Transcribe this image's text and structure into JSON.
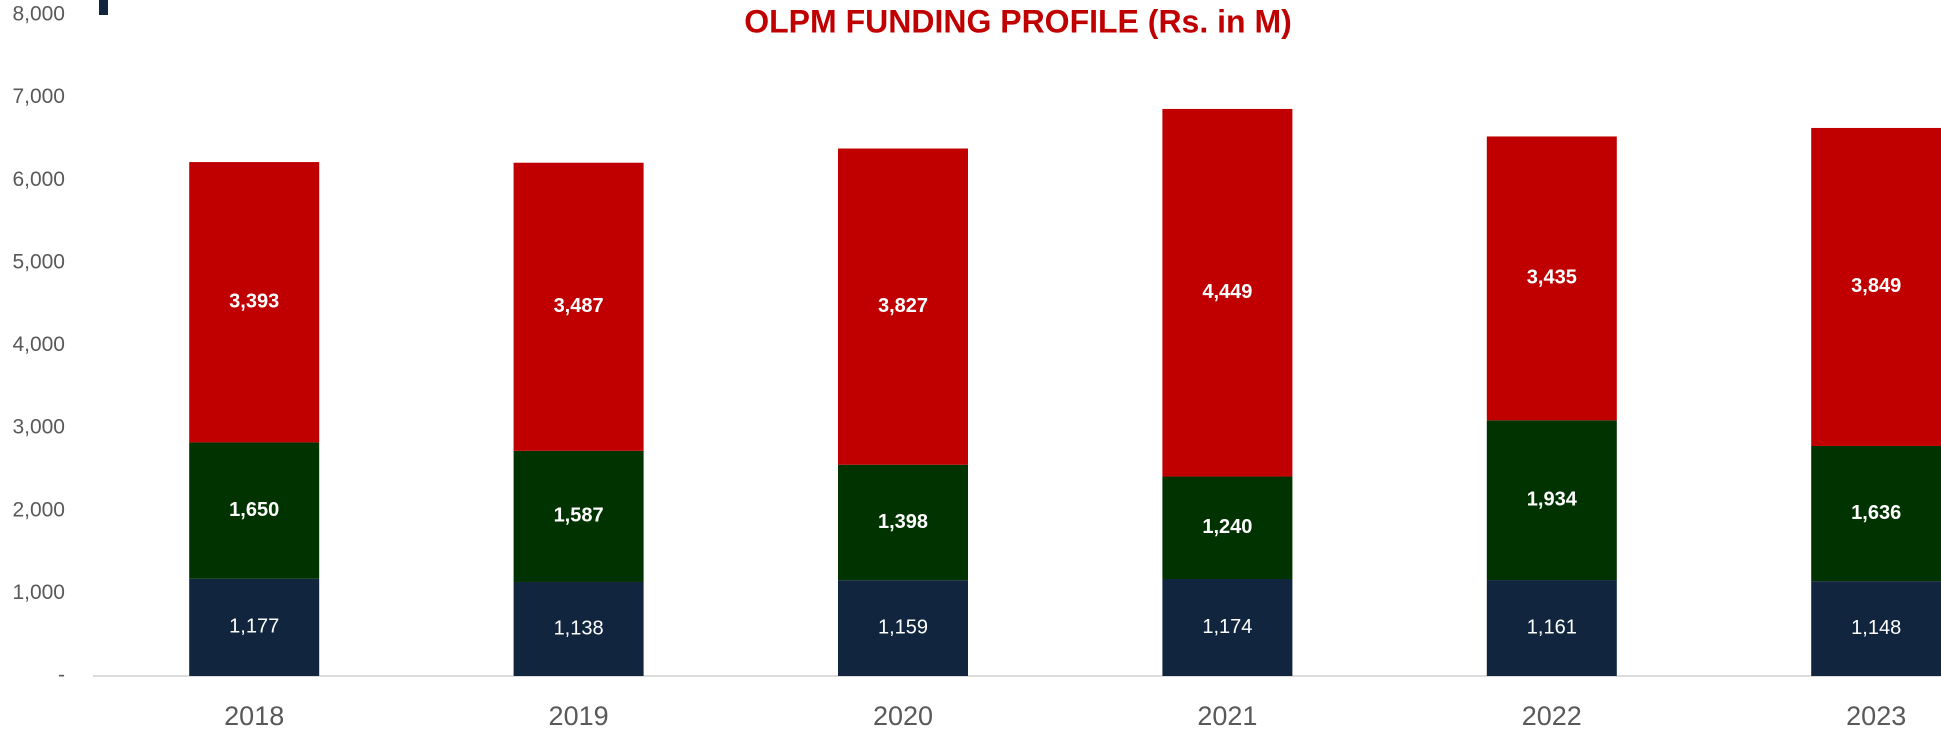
{
  "chart_data": {
    "type": "stacked_bar",
    "title": "OLPM FUNDING PROFILE (Rs. in M)",
    "categories": [
      "2018",
      "2019",
      "2020",
      "2021",
      "2022",
      "2023"
    ],
    "series": [
      {
        "color": "#12253f",
        "values": [
          1177,
          1138,
          1159,
          1174,
          1161,
          1148
        ],
        "value_labels": [
          "1,177",
          "1,138",
          "1,159",
          "1,174",
          "1,161",
          "1,148"
        ]
      },
      {
        "color": "#003300",
        "values": [
          1650,
          1587,
          1398,
          1240,
          1934,
          1636
        ],
        "value_labels": [
          "1,650",
          "1,587",
          "1,398",
          "1,240",
          "1,934",
          "1,636"
        ]
      },
      {
        "color": "#c00000",
        "values": [
          3393,
          3487,
          3827,
          4449,
          3435,
          3849
        ],
        "value_labels": [
          "3,393",
          "3,487",
          "3,827",
          "4,449",
          "3,435",
          "3,849"
        ]
      }
    ],
    "ylim": [
      0,
      8000
    ],
    "yticks": [
      {
        "value": 0,
        "label": "-"
      },
      {
        "value": 1000,
        "label": "1,000"
      },
      {
        "value": 2000,
        "label": "2,000"
      },
      {
        "value": 3000,
        "label": "3,000"
      },
      {
        "value": 4000,
        "label": "4,000"
      },
      {
        "value": 5000,
        "label": "5,000"
      },
      {
        "value": 6000,
        "label": "6,000"
      },
      {
        "value": 7000,
        "label": "7,000"
      },
      {
        "value": 8000,
        "label": "8,000"
      }
    ],
    "grid": false
  }
}
